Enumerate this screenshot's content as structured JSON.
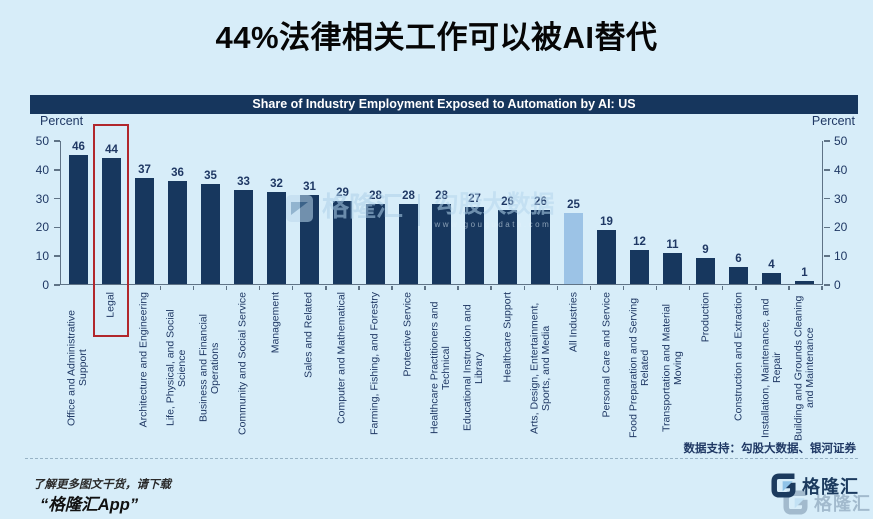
{
  "page": {
    "title": "44%法律相关工作可以被AI替代"
  },
  "chart_data": {
    "type": "bar",
    "title": "Share of Industry Employment Exposed to Automation by AI: US",
    "axis_label_left": "Percent",
    "axis_label_right": "Percent",
    "ylim": [
      0,
      50
    ],
    "yticks": [
      0,
      10,
      20,
      30,
      40,
      50
    ],
    "grid": false,
    "legend": "none",
    "bar_color": "#17375e",
    "accent_bar_color": "#9cc3e6",
    "accent_bar_index": 15,
    "highlight_index": 1,
    "highlight_box_color": "#b1272c",
    "categories": [
      "Office and Administrative Support",
      "Legal",
      "Architecture and Engineering",
      "Life, Physical, and Social Science",
      "Business and Financial Operations",
      "Community and Social Service",
      "Management",
      "Sales and Related",
      "Computer and Mathematical",
      "Farming, Fishing, and Forestry",
      "Protective Service",
      "Healthcare Practitioners and Technical",
      "Educational Instruction and Library",
      "Healthcare Support",
      "Arts, Design, Entertainment, Sports, and Media",
      "All Industries",
      "Personal Care and Service",
      "Food Preparation and Serving Related",
      "Transportation and Material Moving",
      "Production",
      "Construction and Extraction",
      "Installation, Maintenance, and Repair",
      "Building and Grounds Cleaning and Maintenance"
    ],
    "values": [
      46,
      44,
      37,
      36,
      35,
      33,
      32,
      31,
      29,
      28,
      28,
      28,
      27,
      26,
      26,
      25,
      19,
      12,
      11,
      9,
      6,
      4,
      1
    ]
  },
  "watermark": {
    "brand": "格隆汇",
    "partner": "勾股大数据",
    "url": "www.gougudata.com"
  },
  "footer": {
    "source": "数据支持：勾股大数据、银河证券",
    "promo_line1": "了解更多图文干货，请下载",
    "promo_line2": "“格隆汇App”",
    "brand": "格隆汇"
  }
}
